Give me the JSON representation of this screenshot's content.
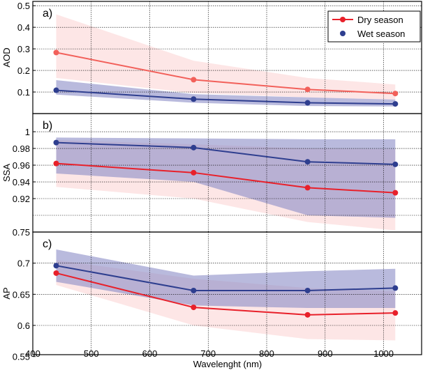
{
  "chart_data": [
    {
      "type": "line",
      "panel_label": "a)",
      "ylabel": "AOD",
      "ylim": [
        0,
        0.52
      ],
      "yticks": [
        "0.1",
        "0.2",
        "0.3",
        "0.4",
        "0.5"
      ],
      "ytick_values": [
        0.1,
        0.2,
        0.3,
        0.4,
        0.5
      ],
      "x": [
        440,
        675,
        870,
        1020
      ],
      "series": [
        {
          "name": "Dry season",
          "color": "#e8202a",
          "line_color": "#f2605a",
          "band_color": "#fbd6d6",
          "values": [
            0.283,
            0.157,
            0.112,
            0.093
          ],
          "upper": [
            0.46,
            0.245,
            0.165,
            0.135
          ],
          "lower": [
            0.165,
            0.095,
            0.075,
            0.065
          ]
        },
        {
          "name": "Wet season",
          "color": "#2e3e8f",
          "band_color": "#8a8cc6",
          "values": [
            0.108,
            0.067,
            0.05,
            0.045
          ],
          "upper": [
            0.155,
            0.09,
            0.075,
            0.065
          ],
          "lower": [
            0.088,
            0.05,
            0.035,
            0.033
          ]
        }
      ]
    },
    {
      "type": "line",
      "panel_label": "b)",
      "ylabel": "SSA",
      "ylim": [
        0.88,
        1.0217
      ],
      "yticks": [
        "0.92",
        "0.94",
        "0.96",
        "0.98",
        "1"
      ],
      "ytick_values": [
        0.92,
        0.94,
        0.96,
        0.98,
        1.0
      ],
      "extra_grid": [
        0.9
      ],
      "x": [
        440,
        675,
        870,
        1020
      ],
      "series": [
        {
          "name": "Dry season",
          "color": "#e8202a",
          "line_color": "#e8202a",
          "band_color": "#fbd6d6",
          "values": [
            0.962,
            0.951,
            0.933,
            0.927
          ],
          "upper": [
            0.99,
            0.985,
            0.98,
            0.979
          ],
          "lower": [
            0.934,
            0.92,
            0.892,
            0.882
          ]
        },
        {
          "name": "Wet season",
          "color": "#2e3e8f",
          "band_color": "#8a8cc6",
          "values": [
            0.987,
            0.981,
            0.964,
            0.961
          ],
          "upper": [
            0.993,
            0.992,
            0.991,
            0.991
          ],
          "lower": [
            0.95,
            0.94,
            0.9,
            0.897
          ]
        }
      ]
    },
    {
      "type": "line",
      "panel_label": "c)",
      "ylabel": "AP",
      "xlabel": "Wavelenght (nm)",
      "ylim": [
        0.553,
        0.75
      ],
      "yticks": [
        "0.55",
        "0.6",
        "0.65",
        "0.7",
        "0.75"
      ],
      "ytick_values": [
        0.55,
        0.6,
        0.65,
        0.7,
        0.75
      ],
      "xlim": [
        400,
        1065
      ],
      "xticks": [
        "400",
        "500",
        "600",
        "700",
        "800",
        "900",
        "1000"
      ],
      "xtick_values": [
        400,
        500,
        600,
        700,
        800,
        900,
        1000
      ],
      "x": [
        440,
        675,
        870,
        1020
      ],
      "series": [
        {
          "name": "Dry season",
          "color": "#e8202a",
          "line_color": "#e8202a",
          "band_color": "#fbd6d6",
          "values": [
            0.684,
            0.629,
            0.617,
            0.62
          ],
          "upper": [
            0.705,
            0.675,
            0.66,
            0.655
          ],
          "lower": [
            0.665,
            0.6,
            0.578,
            0.576
          ]
        },
        {
          "name": "Wet season",
          "color": "#2e3e8f",
          "band_color": "#8a8cc6",
          "values": [
            0.696,
            0.656,
            0.656,
            0.66
          ],
          "upper": [
            0.722,
            0.68,
            0.687,
            0.691
          ],
          "lower": [
            0.67,
            0.632,
            0.628,
            0.628
          ]
        }
      ]
    }
  ],
  "legend": {
    "position": "top-right",
    "items": [
      "Dry season",
      "Wet season"
    ]
  }
}
